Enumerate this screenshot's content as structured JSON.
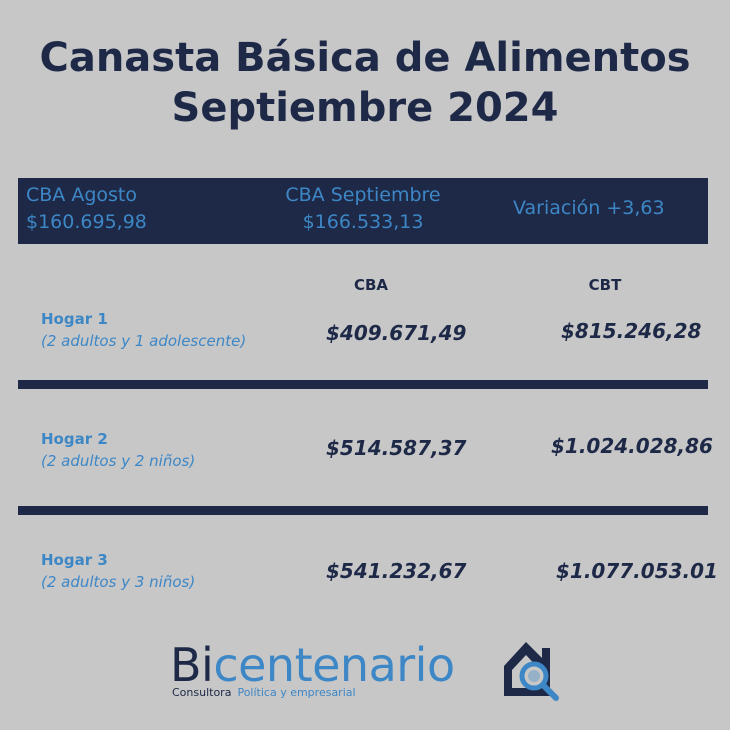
{
  "title": {
    "line1": "Canasta Básica de Alimentos",
    "line2": "Septiembre 2024"
  },
  "banner": {
    "agosto_label": "CBA Agosto",
    "agosto_value": "$160.695,98",
    "sept_label": "CBA Septiembre",
    "sept_value": "$166.533,13",
    "variacion": "Variación +3,63"
  },
  "columns": {
    "cba": "CBA",
    "cbt": "CBT"
  },
  "rows": [
    {
      "label": "Hogar 1",
      "sub": "(2 adultos y 1 adolescente)",
      "cba": "$409.671,49",
      "cbt": "$815.246,28"
    },
    {
      "label": "Hogar 2",
      "sub": "(2 adultos y 2 niños)",
      "cba": "$514.587,37",
      "cbt": "$1.024.028,86"
    },
    {
      "label": "Hogar 3",
      "sub": "(2 adultos y 3 niños)",
      "cba": "$541.232,67",
      "cbt": "$1.077.053.01"
    }
  ],
  "logo": {
    "word_bi": "Bi",
    "word_rest": "centenario",
    "sub1": "Consultora",
    "sub2": "Política y empresarial",
    "icon": "house-magnifier-icon"
  },
  "colors": {
    "background": "#c7c7c8",
    "navy": "#1e2947",
    "accent_blue": "#3d87c6"
  }
}
